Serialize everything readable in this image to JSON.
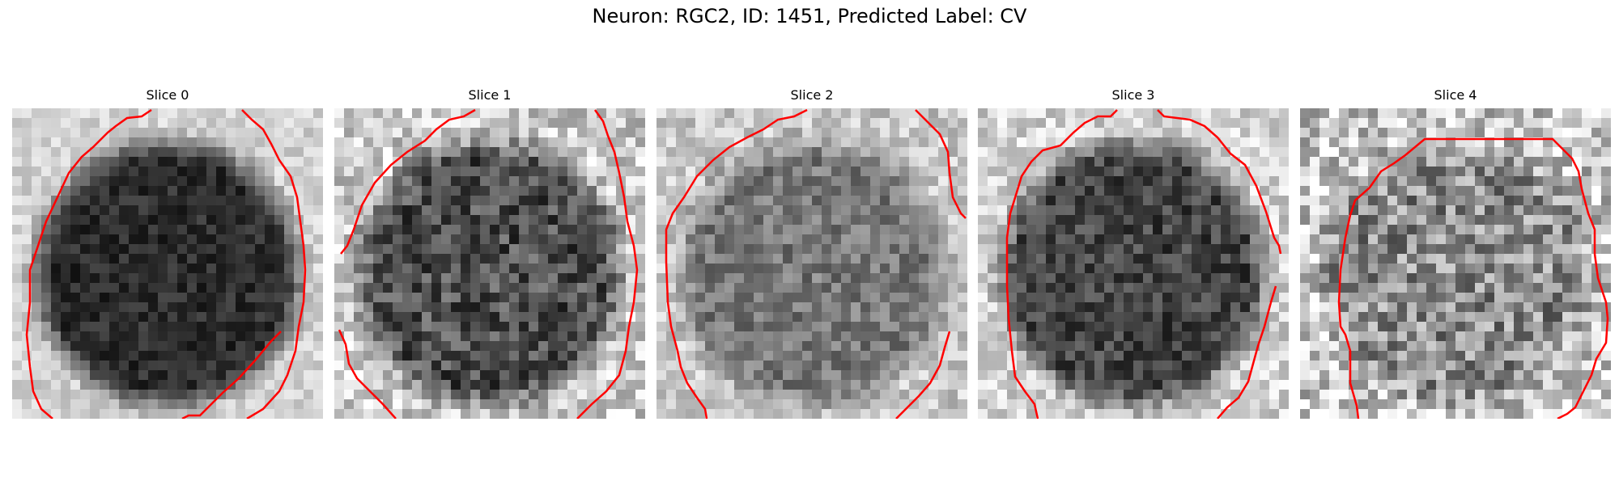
{
  "figure": {
    "title": "Neuron: RGC2, ID: 1451, Predicted Label: CV"
  },
  "contour_color": "#ff0000",
  "panels": [
    {
      "title": "Slice 0",
      "soma_mean": 45,
      "bg_mean": 210,
      "tone_variation": 28
    },
    {
      "title": "Slice 1",
      "soma_mean": 78,
      "bg_mean": 205,
      "tone_variation": 55
    },
    {
      "title": "Slice 2",
      "soma_mean": 120,
      "bg_mean": 200,
      "tone_variation": 40
    },
    {
      "title": "Slice 3",
      "soma_mean": 68,
      "bg_mean": 210,
      "tone_variation": 42
    },
    {
      "title": "Slice 4",
      "soma_mean": 140,
      "bg_mean": 200,
      "tone_variation": 70
    }
  ]
}
